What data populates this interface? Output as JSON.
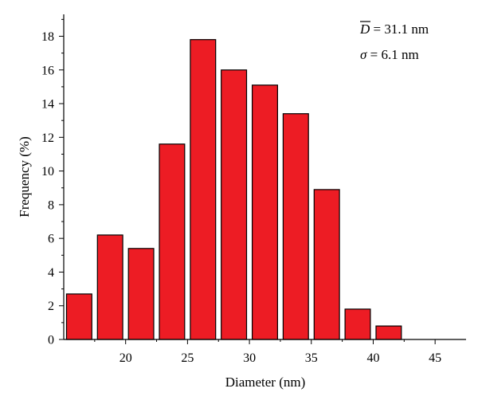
{
  "chart_data": {
    "type": "bar",
    "xlabel": "Diameter (nm)",
    "ylabel": "Frequency (%)",
    "xlim": [
      15,
      47.5
    ],
    "ylim": [
      0,
      19.3
    ],
    "x_ticks": [
      20,
      25,
      30,
      35,
      40,
      45
    ],
    "y_ticks": [
      0,
      2,
      4,
      6,
      8,
      10,
      12,
      14,
      16,
      18
    ],
    "bin_width": 2.5,
    "bins": [
      {
        "start": 15.0,
        "end": 17.5,
        "value": 2.7
      },
      {
        "start": 17.5,
        "end": 20.0,
        "value": 6.2
      },
      {
        "start": 20.0,
        "end": 22.5,
        "value": 5.4
      },
      {
        "start": 22.5,
        "end": 25.0,
        "value": 11.6
      },
      {
        "start": 25.0,
        "end": 27.5,
        "value": 17.8
      },
      {
        "start": 27.5,
        "end": 30.0,
        "value": 16.0
      },
      {
        "start": 30.0,
        "end": 32.5,
        "value": 15.1
      },
      {
        "start": 32.5,
        "end": 35.0,
        "value": 13.4
      },
      {
        "start": 35.0,
        "end": 37.5,
        "value": 8.9
      },
      {
        "start": 37.5,
        "end": 40.0,
        "value": 1.8
      },
      {
        "start": 40.0,
        "end": 42.5,
        "value": 0.8
      }
    ],
    "bar_color": "#ed1c24",
    "annotations": [
      {
        "symbol": "D",
        "overline": true,
        "text": " = 31.1 nm"
      },
      {
        "symbol": "σ",
        "overline": false,
        "text": " = 6.1 nm"
      }
    ],
    "grid": false,
    "legend": "none"
  }
}
